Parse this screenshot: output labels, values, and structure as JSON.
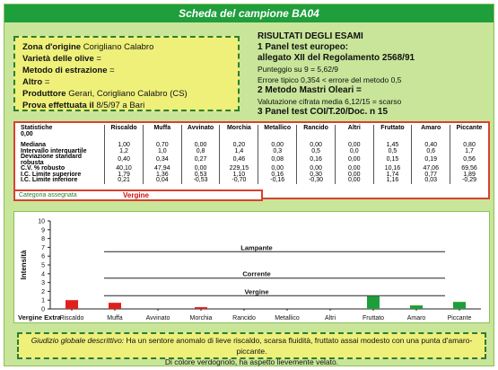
{
  "header": {
    "title": "Scheda del campione BA04"
  },
  "origin": {
    "zona_label": "Zona d'origine",
    "zona_value": "Corigliano Calabro",
    "varieta_label": "Varietà delle olive",
    "varieta_value": "=",
    "metodo_label": "Metodo di estrazione",
    "metodo_value": "=",
    "altro_label": "Altro",
    "altro_value": "=",
    "produttore_label": "Produttore",
    "produttore_value": "Gerari, Corigliano Calabro (CS)",
    "prova_label": "Prova effettuata il",
    "prova_value": "8/5/97  a Bari"
  },
  "results": {
    "title": "RISULTATI DEGLI ESAMI",
    "line1": "1 Panel test europeo:",
    "line2": "allegato XII del Regolamento 2568/91",
    "line3": "Punteggio su 9 = 5,62/9",
    "line4": "Errore tipico 0,354 < errore del metodo 0,5",
    "line5": "2 Metodo Mastri Oleari =",
    "line6": "Valutazione cifrata media 6,12/15 = scarso",
    "line7": "3 Panel test COI/T.20/Doc. n 15"
  },
  "stats": {
    "corner_top": "Statistiche",
    "corner_bottom": "0,00",
    "columns": [
      "Riscaldo",
      "Muffa",
      "Avvinato",
      "Morchia",
      "Metallico",
      "Rancido",
      "Altri",
      "Fruttato",
      "Amaro",
      "Piccante"
    ],
    "rows": [
      {
        "label": "Mediana",
        "values": [
          "1,00",
          "0,70",
          "0,00",
          "0,20",
          "0,00",
          "0,00",
          "0,00",
          "1,45",
          "0,40",
          "0,80"
        ]
      },
      {
        "label": "Intervallo interquartile",
        "values": [
          "1,2",
          "1,0",
          "0,8",
          "1,4",
          "0,3",
          "0,5",
          "0,0",
          "0,5",
          "0,6",
          "1,7"
        ]
      },
      {
        "label": "Deviazione standard robusta",
        "values": [
          "0,40",
          "0,34",
          "0,27",
          "0,46",
          "0,08",
          "0,16",
          "0,00",
          "0,15",
          "0,19",
          "0,56"
        ]
      },
      {
        "label": "C.V. % robusto",
        "values": [
          "40,10",
          "47,94",
          "0,00",
          "229,15",
          "0,00",
          "0,00",
          "0,00",
          "10,16",
          "47,06",
          "69,56"
        ]
      },
      {
        "label": "I.C. Limite superiore",
        "values": [
          "1,79",
          "1,36",
          "0,53",
          "1,10",
          "0,16",
          "0,30",
          "0,00",
          "1,74",
          "0,77",
          "1,89"
        ]
      },
      {
        "label": "I.C. Limite inferiore",
        "values": [
          "0,21",
          "0,04",
          "-0,53",
          "-0,70",
          "-0,16",
          "-0,30",
          "0,00",
          "1,16",
          "0,03",
          "-0,29"
        ]
      }
    ]
  },
  "category": {
    "label": "Categoria assegnata",
    "value": "Vergine"
  },
  "chart_data": {
    "type": "bar",
    "ylabel": "Intensità",
    "ylim": [
      0,
      10
    ],
    "yticks": [
      "0",
      "1",
      "2",
      "3",
      "4",
      "5",
      "6",
      "7",
      "8",
      "9",
      "10"
    ],
    "categories": [
      "Riscaldo",
      "Muffa",
      "Avvinato",
      "Morchia",
      "Rancido",
      "Metallico",
      "Altri",
      "Fruttato",
      "Amaro",
      "Piccante"
    ],
    "values": [
      1.0,
      0.7,
      0.0,
      0.2,
      0.0,
      0.0,
      0.0,
      1.45,
      0.4,
      0.8
    ],
    "colors": [
      "#e0201c",
      "#e0201c",
      "#e0201c",
      "#e0201c",
      "#e0201c",
      "#e0201c",
      "#e0201c",
      "#1e9e3a",
      "#1e9e3a",
      "#1e9e3a"
    ],
    "thresholds": [
      {
        "label": "Lampante",
        "value": 6.5
      },
      {
        "label": "Corrente",
        "value": 3.5
      },
      {
        "label": "Vergine",
        "value": 1.5
      }
    ],
    "baseline_label": "Vergine Extra",
    "grid": false
  },
  "judgement": {
    "label": "Giudizio globale descrittivo:",
    "text1": "Ha un sentore anomalo di lieve riscaldo, scarsa fluidità, fruttato assai modesto con una punta d'amaro-piccante.",
    "text2": "Di colore verdognolo, ha aspetto lievemente velato."
  }
}
